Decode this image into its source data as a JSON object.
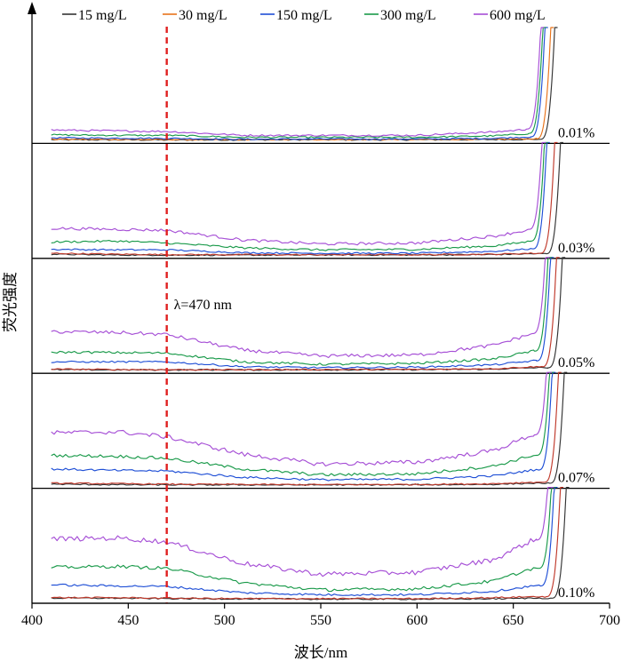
{
  "chart_data": {
    "type": "line",
    "xlabel": "波长/nm",
    "ylabel": "荧光强度",
    "xlim": [
      400,
      700
    ],
    "x_ticks": [
      400,
      450,
      500,
      550,
      600,
      650,
      700
    ],
    "x_tick_labels": [
      "400",
      "450",
      "500",
      "550",
      "600",
      "650",
      "700"
    ],
    "grid": false,
    "legend_position": "top",
    "legend": [
      {
        "label": "15 mg/L",
        "color": "#333333"
      },
      {
        "label": "30 mg/L",
        "color": "#e8731a"
      },
      {
        "label": "150 mg/L",
        "color": "#1f4fd6"
      },
      {
        "label": "300 mg/L",
        "color": "#1a9a4a"
      },
      {
        "label": "600 mg/L",
        "color": "#a64fd6"
      }
    ],
    "extra_series_color": "#c0392b",
    "reference_line": {
      "x": 470,
      "label": "λ=470 nm",
      "color": "#e02020"
    },
    "panels": [
      {
        "label": "0.01%",
        "series": [
          {
            "color": "#333333",
            "baseline": [
              1.0,
              0.9,
              0.8,
              0.9,
              1.0,
              1.0,
              1.2,
              1.5
            ],
            "rise_x": 668
          },
          {
            "color": "#e8731a",
            "baseline": [
              1.5,
              1.4,
              1.2,
              1.2,
              1.3,
              1.3,
              1.6,
              2.0
            ],
            "rise_x": 666
          },
          {
            "color": "#1f4fd6",
            "baseline": [
              3.0,
              2.6,
              2.5,
              1.5,
              1.8,
              1.8,
              2.5,
              4.0
            ],
            "rise_x": 663
          },
          {
            "color": "#1a9a4a",
            "baseline": [
              6.0,
              5.5,
              5.5,
              3.5,
              3.5,
              3.5,
              5.0,
              7.5
            ],
            "rise_x": 662
          },
          {
            "color": "#a64fd6",
            "baseline": [
              11.0,
              10.0,
              9.5,
              5.5,
              5.5,
              5.5,
              9.0,
              12.0
            ],
            "rise_x": 661
          }
        ]
      },
      {
        "label": "0.03%",
        "series": [
          {
            "color": "#333333",
            "baseline": [
              1.5,
              0.7,
              0.6,
              0.6,
              0.8,
              0.8,
              1.2,
              2.0
            ],
            "rise_x": 671
          },
          {
            "color": "#c0392b",
            "baseline": [
              2.5,
              1.5,
              1.2,
              1.0,
              1.0,
              1.0,
              1.5,
              2.5
            ],
            "rise_x": 668
          },
          {
            "color": "#1f4fd6",
            "baseline": [
              6.5,
              6.0,
              6.0,
              3.0,
              2.5,
              2.5,
              4.5,
              7.0
            ],
            "rise_x": 664
          },
          {
            "color": "#1a9a4a",
            "baseline": [
              14.0,
              15.0,
              13.0,
              8.0,
              6.0,
              6.5,
              10.0,
              15.0
            ],
            "rise_x": 663
          },
          {
            "color": "#a64fd6",
            "baseline": [
              28.0,
              27.0,
              26.0,
              16.0,
              12.0,
              13.0,
              20.0,
              27.0
            ],
            "rise_x": 662
          }
        ]
      },
      {
        "label": "0.05%",
        "series": [
          {
            "color": "#333333",
            "baseline": [
              1.0,
              0.8,
              0.8,
              0.8,
              0.9,
              1.0,
              1.5,
              3.0
            ],
            "rise_x": 672
          },
          {
            "color": "#c0392b",
            "baseline": [
              1.5,
              1.2,
              1.0,
              1.0,
              1.2,
              1.3,
              2.0,
              4.0
            ],
            "rise_x": 669
          },
          {
            "color": "#1f4fd6",
            "baseline": [
              9.0,
              9.0,
              9.0,
              4.0,
              3.0,
              3.5,
              6.0,
              10.0
            ],
            "rise_x": 666
          },
          {
            "color": "#1a9a4a",
            "baseline": [
              19.0,
              18.5,
              18.0,
              9.0,
              6.5,
              7.5,
              12.0,
              20.0
            ],
            "rise_x": 665
          },
          {
            "color": "#a64fd6",
            "baseline": [
              40.0,
              39.0,
              37.0,
              21.0,
              15.0,
              16.0,
              26.0,
              38.0
            ],
            "rise_x": 664
          }
        ]
      },
      {
        "label": "0.07%",
        "series": [
          {
            "color": "#333333",
            "baseline": [
              1.5,
              0.9,
              0.8,
              0.8,
              0.8,
              0.9,
              1.3,
              2.5
            ],
            "rise_x": 673
          },
          {
            "color": "#c0392b",
            "baseline": [
              2.5,
              2.0,
              1.5,
              1.2,
              1.0,
              1.2,
              2.0,
              3.5
            ],
            "rise_x": 670
          },
          {
            "color": "#1f4fd6",
            "baseline": [
              17.0,
              15.5,
              15.0,
              8.5,
              6.0,
              6.5,
              10.0,
              16.0
            ],
            "rise_x": 667
          },
          {
            "color": "#1a9a4a",
            "baseline": [
              31.0,
              30.0,
              28.0,
              17.0,
              11.0,
              12.0,
              20.0,
              31.0
            ],
            "rise_x": 666
          },
          {
            "color": "#a64fd6",
            "baseline": [
              54.0,
              55.0,
              50.0,
              32.0,
              22.0,
              24.0,
              36.0,
              52.0
            ],
            "rise_x": 665
          }
        ]
      },
      {
        "label": "0.10%",
        "series": [
          {
            "color": "#333333",
            "baseline": [
              2.5,
              2.5,
              2.0,
              1.8,
              1.5,
              1.5,
              1.8,
              2.5
            ],
            "rise_x": 674
          },
          {
            "color": "#c0392b",
            "baseline": [
              3.0,
              3.0,
              2.5,
              2.0,
              2.0,
              2.0,
              3.0,
              4.0
            ],
            "rise_x": 671
          },
          {
            "color": "#1f4fd6",
            "baseline": [
              16.0,
              15.0,
              14.5,
              8.0,
              6.0,
              6.0,
              9.5,
              15.0
            ],
            "rise_x": 668
          },
          {
            "color": "#1a9a4a",
            "baseline": [
              34.0,
              35.0,
              33.0,
              18.0,
              11.0,
              12.0,
              20.0,
              33.0
            ],
            "rise_x": 667
          },
          {
            "color": "#a64fd6",
            "baseline": [
              63.0,
              64.0,
              60.0,
              38.0,
              27.0,
              29.0,
              42.0,
              62.0
            ],
            "rise_x": 666
          }
        ]
      }
    ]
  }
}
